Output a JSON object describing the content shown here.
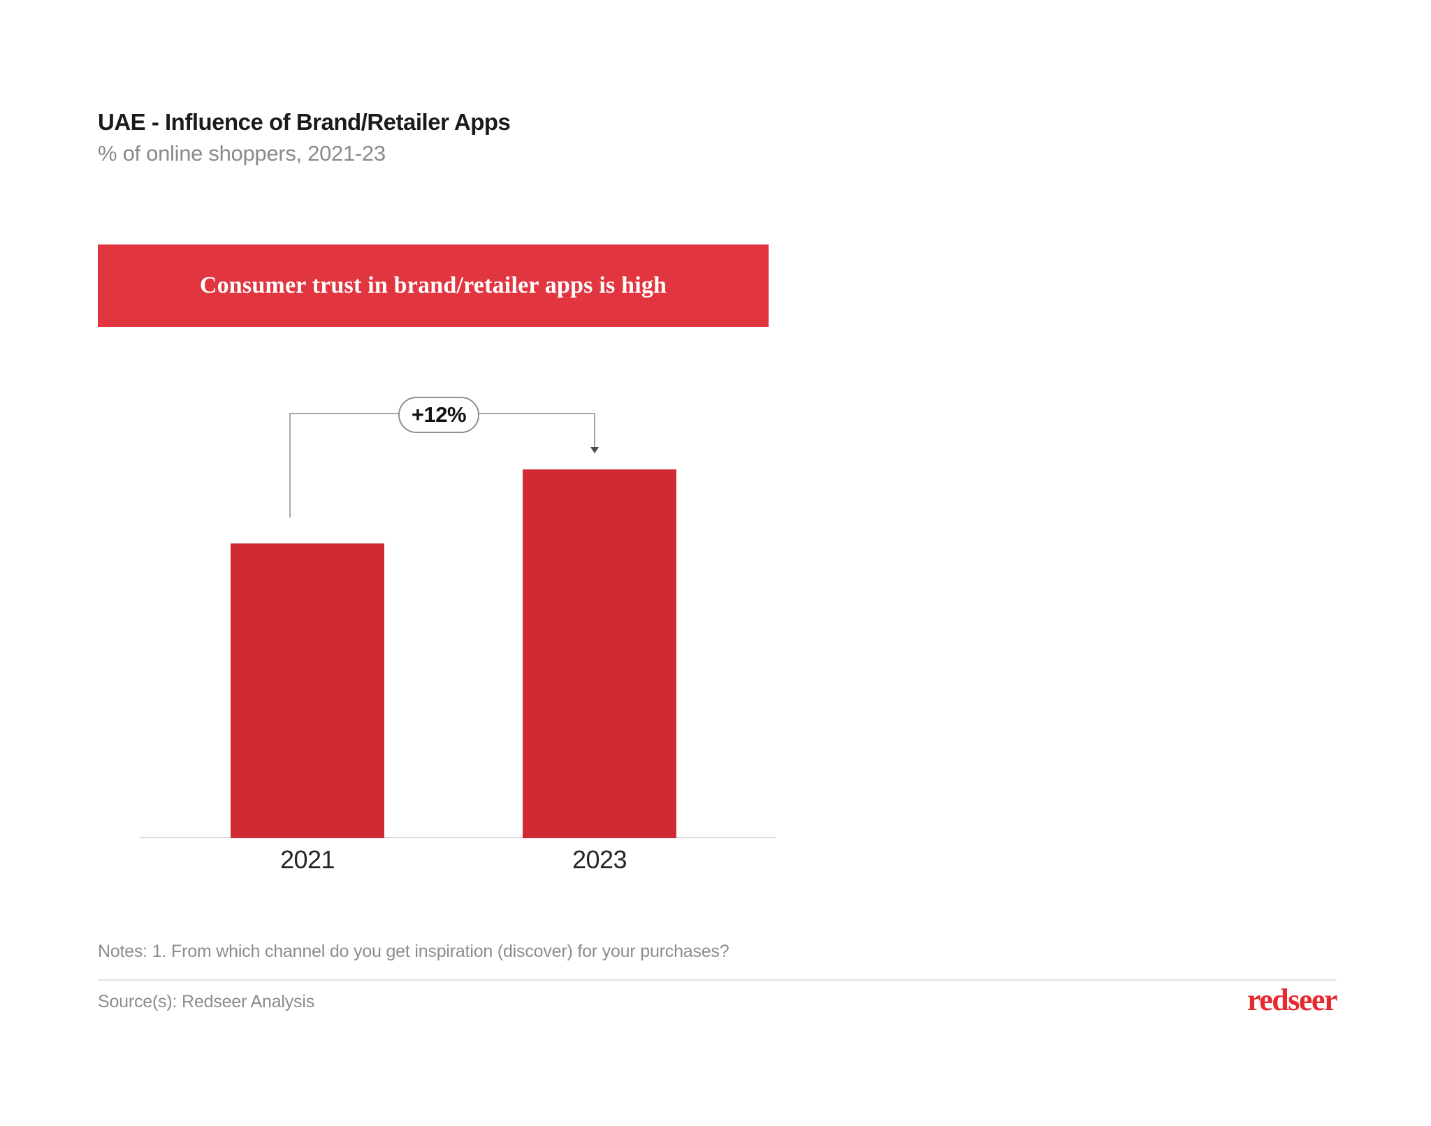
{
  "header": {
    "title": "UAE - Influence of Brand/Retailer Apps",
    "subtitle": "% of online shoppers, 2021-23"
  },
  "callout": {
    "text": "Consumer trust in brand/retailer apps is high",
    "bg_color": "#E1353F",
    "text_color": "#FFFFFF"
  },
  "annotation": {
    "label": "+12%"
  },
  "chart_data": {
    "type": "bar",
    "title": "UAE - Influence of Brand/Retailer Apps",
    "ylabel": "% of online shoppers",
    "categories": [
      "2021",
      "2023"
    ],
    "values": [
      80,
      100
    ],
    "values_are_relative": true,
    "value_labels_shown": false,
    "growth_annotation": "+12%",
    "bar_color": "#D02B34",
    "axis_line_color": "#D9D9D9",
    "grid": false,
    "legend": false
  },
  "footer": {
    "notes": "Notes: 1. From which channel do you get inspiration (discover) for your purchases?",
    "source": "Source(s): Redseer Analysis",
    "logo_text": "redseer",
    "logo_color": "#E52A30"
  }
}
